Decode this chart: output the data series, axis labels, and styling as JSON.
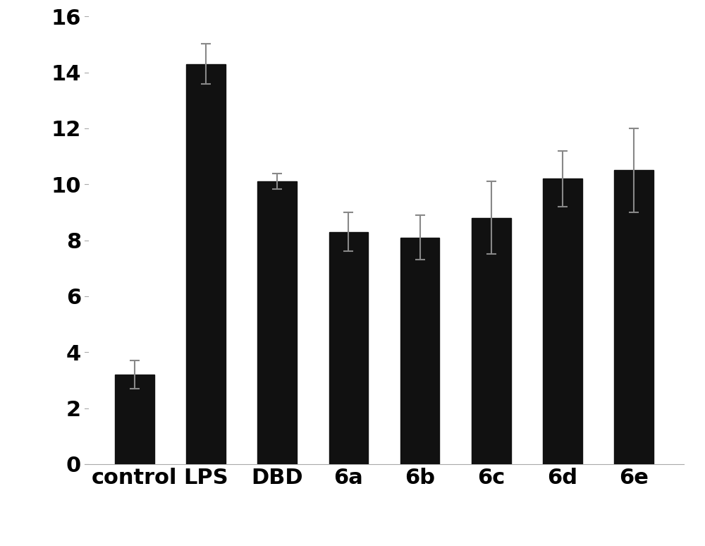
{
  "categories": [
    "control",
    "LPS",
    "DBD",
    "6a",
    "6b",
    "6c",
    "6d",
    "6e"
  ],
  "values": [
    3.2,
    14.3,
    10.1,
    8.3,
    8.1,
    8.8,
    10.2,
    10.5
  ],
  "errors": [
    0.5,
    0.72,
    0.28,
    0.7,
    0.8,
    1.3,
    1.0,
    1.5
  ],
  "bar_color": "#111111",
  "error_color": "#888888",
  "ylim": [
    0,
    16
  ],
  "yticks": [
    0,
    2,
    4,
    6,
    8,
    10,
    12,
    14,
    16
  ],
  "background_color": "#ffffff",
  "tick_fontsize": 22,
  "xlabel_fontsize": 22,
  "bar_width": 0.55,
  "cap_size": 5,
  "elinewidth": 1.5,
  "capthick": 1.5
}
